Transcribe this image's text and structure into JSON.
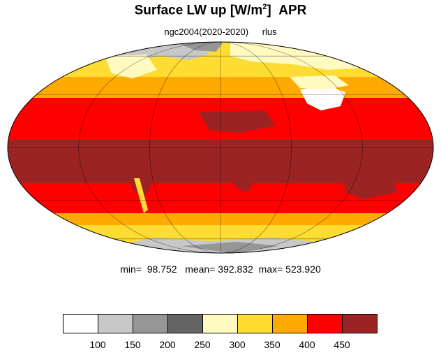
{
  "title": {
    "text": "Surface LW up [W/m",
    "sup": "2",
    "close": "]",
    "month": "APR"
  },
  "subtitle": {
    "case": "ngc2004(2020-2020)",
    "variable": "rlus"
  },
  "stats": {
    "text": "min=  98.752   mean= 392.832  max= 523.920"
  },
  "colorbar": {
    "colors": [
      "#ffffff",
      "#c8c8c8",
      "#969696",
      "#646464",
      "#fffac0",
      "#ffdc32",
      "#ffaa00",
      "#ff0000",
      "#9b2323"
    ],
    "labels": [
      "100",
      "150",
      "200",
      "250",
      "300",
      "350",
      "400",
      "450"
    ]
  },
  "map": {
    "projection": "mollweide",
    "ocean_bands": [
      "#ffdc32",
      "#ffaa00",
      "#ff0000",
      "#9b2323",
      "#ff0000",
      "#ffaa00",
      "#ffdc32",
      "#fffac0"
    ],
    "land_colors": {
      "antarctica": "#969696",
      "arctic": "#c8c8c8",
      "tibet": "#ffffff",
      "tropics_land": "#ff0000"
    }
  }
}
